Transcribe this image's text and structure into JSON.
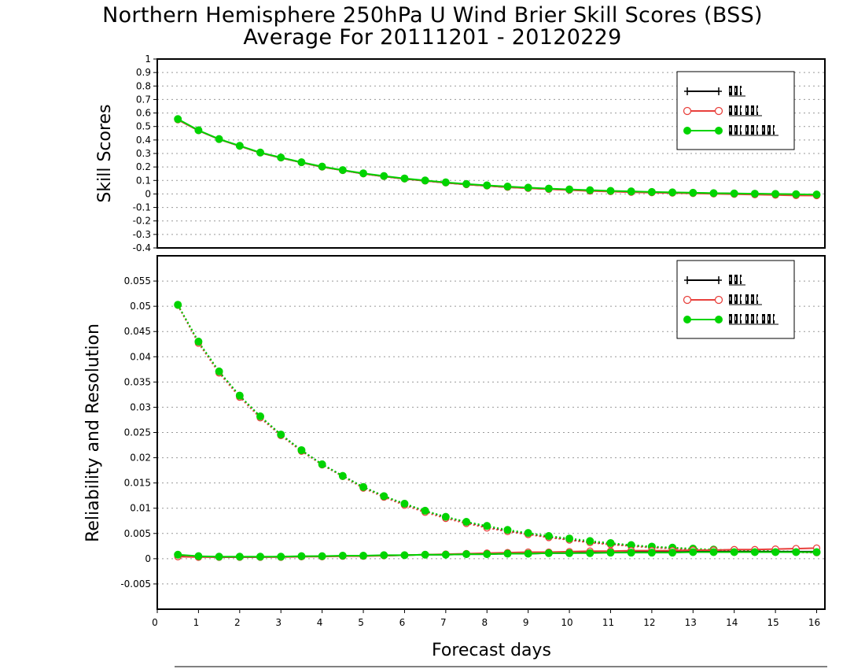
{
  "header": {
    "title_line1": "Northern Hemisphere 250hPa U Wind Brier Skill Scores (BSS)",
    "title_line2": "Average For 20111201 - 20120229"
  },
  "colors": {
    "series1": "#000000",
    "series2": "#e8403c",
    "series3": "#00d400",
    "grid": "#999999"
  },
  "chart_data": [
    {
      "type": "line",
      "ylabel": "Skill Scores",
      "xlabel": "",
      "xlim": [
        0,
        16.2
      ],
      "ylim": [
        -0.4,
        1
      ],
      "yticks": [
        "-0.4",
        "-0.3",
        "-0.2",
        "-0.1",
        "0",
        "0.1",
        "0.2",
        "0.3",
        "0.4",
        "0.5",
        "0.6",
        "0.7",
        "0.8",
        "0.9",
        "1"
      ],
      "grid": true,
      "legend_placement": "top-right",
      "x": [
        0.5,
        1,
        1.5,
        2,
        2.5,
        3,
        3.5,
        4,
        4.5,
        5,
        5.5,
        6,
        6.5,
        7,
        7.5,
        8,
        8.5,
        9,
        9.5,
        10,
        10.5,
        11,
        11.5,
        12,
        12.5,
        13,
        13.5,
        14,
        14.5,
        15,
        15.5,
        16
      ],
      "series": [
        {
          "name": "",
          "style": "plus",
          "values": [
            0.55,
            0.47,
            0.405,
            0.355,
            0.305,
            0.268,
            0.233,
            0.2,
            0.175,
            0.15,
            0.13,
            0.112,
            0.097,
            0.083,
            0.07,
            0.06,
            0.05,
            0.043,
            0.036,
            0.03,
            0.024,
            0.02,
            0.016,
            0.013,
            0.01,
            0.008,
            0.005,
            0.003,
            0.001,
            -0.001,
            -0.003,
            -0.005
          ]
        },
        {
          "name": "",
          "style": "open-circle",
          "values": [
            0.55,
            0.47,
            0.405,
            0.355,
            0.305,
            0.268,
            0.233,
            0.2,
            0.175,
            0.15,
            0.13,
            0.112,
            0.097,
            0.083,
            0.07,
            0.06,
            0.05,
            0.042,
            0.035,
            0.029,
            0.022,
            0.018,
            0.013,
            0.01,
            0.007,
            0.004,
            0.001,
            -0.002,
            -0.005,
            -0.008,
            -0.011,
            -0.012
          ]
        },
        {
          "name": "",
          "style": "filled-circle",
          "values": [
            0.555,
            0.472,
            0.407,
            0.357,
            0.307,
            0.27,
            0.235,
            0.203,
            0.177,
            0.153,
            0.133,
            0.115,
            0.1,
            0.086,
            0.074,
            0.064,
            0.055,
            0.047,
            0.04,
            0.034,
            0.028,
            0.023,
            0.019,
            0.015,
            0.012,
            0.009,
            0.006,
            0.004,
            0.002,
            0,
            -0.002,
            -0.004
          ]
        }
      ]
    },
    {
      "type": "line",
      "ylabel": "Reliability and Resolution",
      "xlabel": "Forecast days",
      "xlim": [
        0,
        16.2
      ],
      "ylim": [
        -0.01,
        0.06
      ],
      "yticks": [
        "-0.005",
        "0",
        "0.005",
        "0.01",
        "0.015",
        "0.02",
        "0.025",
        "0.03",
        "0.035",
        "0.04",
        "0.045",
        "0.05",
        "0.055"
      ],
      "xticks": [
        "0",
        "1",
        "2",
        "3",
        "4",
        "5",
        "6",
        "7",
        "8",
        "9",
        "10",
        "11",
        "12",
        "13",
        "14",
        "15",
        "16"
      ],
      "grid": true,
      "legend_placement": "top-right",
      "x": [
        0.5,
        1,
        1.5,
        2,
        2.5,
        3,
        3.5,
        4,
        4.5,
        5,
        5.5,
        6,
        6.5,
        7,
        7.5,
        8,
        8.5,
        9,
        9.5,
        10,
        10.5,
        11,
        11.5,
        12,
        12.5,
        13,
        13.5,
        14,
        14.5,
        15,
        15.5,
        16
      ],
      "series": [
        {
          "name": "",
          "style": "plus",
          "linestyle": "dotted",
          "values": [
            0.0502,
            0.0428,
            0.037,
            0.0322,
            0.0281,
            0.0246,
            0.0214,
            0.0187,
            0.0164,
            0.0142,
            0.0124,
            0.0108,
            0.0094,
            0.0082,
            0.0072,
            0.0063,
            0.0055,
            0.0049,
            0.0043,
            0.0038,
            0.0033,
            0.0029,
            0.0026,
            0.0023,
            0.0021,
            0.0019,
            0.0017,
            0.0016,
            0.0015,
            0.0014,
            0.0013,
            0.0012
          ]
        },
        {
          "name": "",
          "style": "open-circle",
          "linestyle": "dotted",
          "values": [
            0.0502,
            0.0427,
            0.0368,
            0.032,
            0.0279,
            0.0244,
            0.0213,
            0.0186,
            0.0163,
            0.014,
            0.0122,
            0.0106,
            0.0092,
            0.008,
            0.007,
            0.0061,
            0.0054,
            0.0048,
            0.0042,
            0.0037,
            0.0032,
            0.0028,
            0.0025,
            0.0022,
            0.002,
            0.0018,
            0.0017,
            0.0016,
            0.0015,
            0.0014,
            0.0013,
            0.0012
          ]
        },
        {
          "name": "",
          "style": "filled-circle",
          "linestyle": "dotted",
          "values": [
            0.0503,
            0.043,
            0.0371,
            0.0323,
            0.0282,
            0.0246,
            0.0215,
            0.0187,
            0.0164,
            0.0142,
            0.0124,
            0.0109,
            0.0095,
            0.0083,
            0.0073,
            0.0065,
            0.0057,
            0.0051,
            0.0045,
            0.004,
            0.0035,
            0.0031,
            0.0027,
            0.0024,
            0.0022,
            0.002,
            0.0018,
            0.0017,
            0.0016,
            0.0015,
            0.0014,
            0.0013
          ]
        },
        {
          "name": "",
          "style": "plus",
          "linestyle": "solid",
          "values": [
            0.0006,
            0.0004,
            0.0003,
            0.0003,
            0.0003,
            0.0004,
            0.0004,
            0.0005,
            0.0005,
            0.0006,
            0.0006,
            0.0007,
            0.0008,
            0.0008,
            0.0009,
            0.0009,
            0.001,
            0.001,
            0.0011,
            0.0011,
            0.0012,
            0.0012,
            0.0013,
            0.0013,
            0.0013,
            0.0014,
            0.0014,
            0.0014,
            0.0014,
            0.0014,
            0.0014,
            0.0014
          ]
        },
        {
          "name": "",
          "style": "open-circle",
          "linestyle": "solid",
          "values": [
            0.0004,
            0.0003,
            0.0003,
            0.0003,
            0.0003,
            0.0003,
            0.0004,
            0.0004,
            0.0005,
            0.0005,
            0.0006,
            0.0007,
            0.0008,
            0.0009,
            0.001,
            0.0011,
            0.0012,
            0.0013,
            0.0013,
            0.0014,
            0.0015,
            0.0015,
            0.0016,
            0.0016,
            0.0016,
            0.0017,
            0.0017,
            0.0018,
            0.0018,
            0.0019,
            0.002,
            0.0021
          ]
        },
        {
          "name": "",
          "style": "filled-circle",
          "linestyle": "solid",
          "values": [
            0.0008,
            0.0005,
            0.0004,
            0.0004,
            0.0004,
            0.0004,
            0.0005,
            0.0005,
            0.0006,
            0.0006,
            0.0007,
            0.0007,
            0.0008,
            0.0008,
            0.0009,
            0.0009,
            0.001,
            0.001,
            0.0011,
            0.0011,
            0.0011,
            0.0012,
            0.0012,
            0.0012,
            0.0012,
            0.0013,
            0.0013,
            0.0013,
            0.0013,
            0.0013,
            0.0013,
            0.0013
          ]
        }
      ]
    }
  ]
}
